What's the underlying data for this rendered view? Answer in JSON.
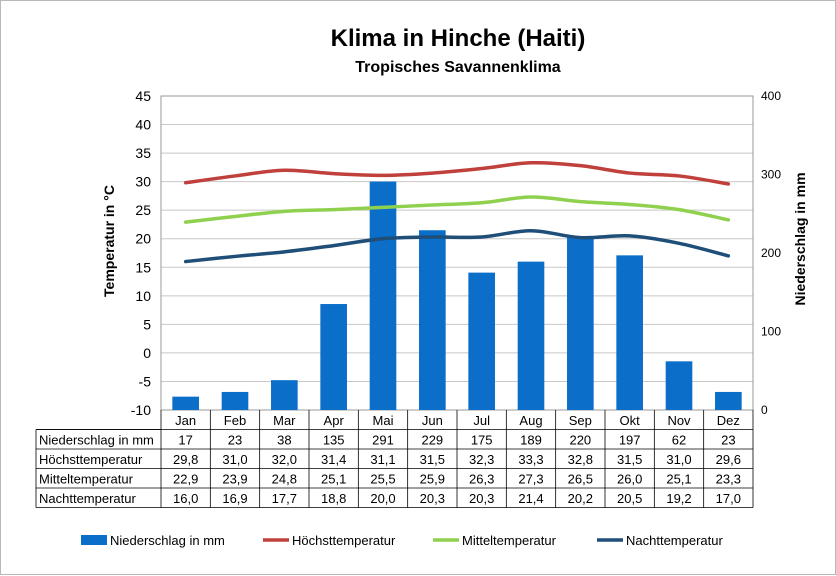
{
  "chart_data": {
    "type": "bar+line",
    "title": "Klima in Hinche (Haiti)",
    "subtitle": "Tropisches Savannenklima",
    "ylabel_left": "Temperatur in °C",
    "ylabel_right": "Niederschlag in mm",
    "ylim_left": [
      -10,
      45
    ],
    "ylim_right": [
      0,
      400
    ],
    "yticks_left": [
      "45",
      "40",
      "35",
      "30",
      "25",
      "20",
      "15",
      "10",
      "5",
      "0",
      "-5",
      "-10"
    ],
    "yticks_right": [
      "400",
      "300",
      "200",
      "100",
      "0"
    ],
    "categories": [
      "Jan",
      "Feb",
      "Mar",
      "Apr",
      "Mai",
      "Jun",
      "Jul",
      "Aug",
      "Sep",
      "Okt",
      "Nov",
      "Dez"
    ],
    "grid": "horizontal",
    "legend_position": "bottom",
    "series": [
      {
        "name": "Niederschlag in mm",
        "type": "bar",
        "axis": "right",
        "color": "#0b6fc9",
        "values": [
          17,
          23,
          38,
          135,
          291,
          229,
          175,
          189,
          220,
          197,
          62,
          23
        ],
        "labels": [
          "17",
          "23",
          "38",
          "135",
          "291",
          "229",
          "175",
          "189",
          "220",
          "197",
          "62",
          "23"
        ]
      },
      {
        "name": "Höchsttemperatur",
        "type": "line",
        "axis": "left",
        "color": "#c0403b",
        "values": [
          29.8,
          31.0,
          32.0,
          31.4,
          31.1,
          31.5,
          32.3,
          33.3,
          32.8,
          31.5,
          31.0,
          29.6
        ],
        "labels": [
          "29,8",
          "31,0",
          "32,0",
          "31,4",
          "31,1",
          "31,5",
          "32,3",
          "33,3",
          "32,8",
          "31,5",
          "31,0",
          "29,6"
        ]
      },
      {
        "name": "Mitteltemperatur",
        "type": "line",
        "axis": "left",
        "color": "#8fd14f",
        "values": [
          22.9,
          23.9,
          24.8,
          25.1,
          25.5,
          25.9,
          26.3,
          27.3,
          26.5,
          26.0,
          25.1,
          23.3
        ],
        "labels": [
          "22,9",
          "23,9",
          "24,8",
          "25,1",
          "25,5",
          "25,9",
          "26,3",
          "27,3",
          "26,5",
          "26,0",
          "25,1",
          "23,3"
        ]
      },
      {
        "name": "Nachttemperatur",
        "type": "line",
        "axis": "left",
        "color": "#1f4e79",
        "values": [
          16.0,
          16.9,
          17.7,
          18.8,
          20.0,
          20.3,
          20.3,
          21.4,
          20.2,
          20.5,
          19.2,
          17.0
        ],
        "labels": [
          "16,0",
          "16,9",
          "17,7",
          "18,8",
          "20,0",
          "20,3",
          "20,3",
          "21,4",
          "20,2",
          "20,5",
          "19,2",
          "17,0"
        ]
      }
    ]
  }
}
